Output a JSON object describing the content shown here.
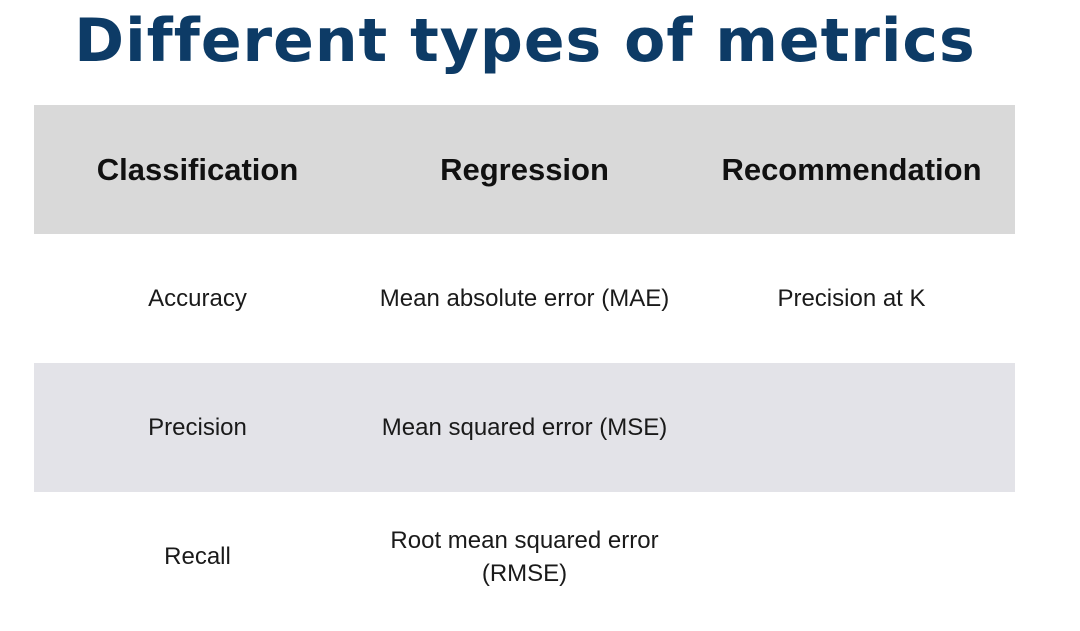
{
  "title": "Different types of metrics",
  "table": {
    "headers": [
      "Classification",
      "Regression",
      "Recommendation"
    ],
    "rows": [
      [
        "Accuracy",
        "Mean absolute error (MAE)",
        "Precision at K"
      ],
      [
        "Precision",
        "Mean squared error (MSE)",
        ""
      ],
      [
        "Recall",
        "Root mean squared error (RMSE)",
        ""
      ]
    ]
  },
  "colors": {
    "title": "#0d3b66",
    "header_background": "#d9d9d9",
    "shaded_row_background": "#e3e3e8",
    "text": "#1a1a1a"
  }
}
